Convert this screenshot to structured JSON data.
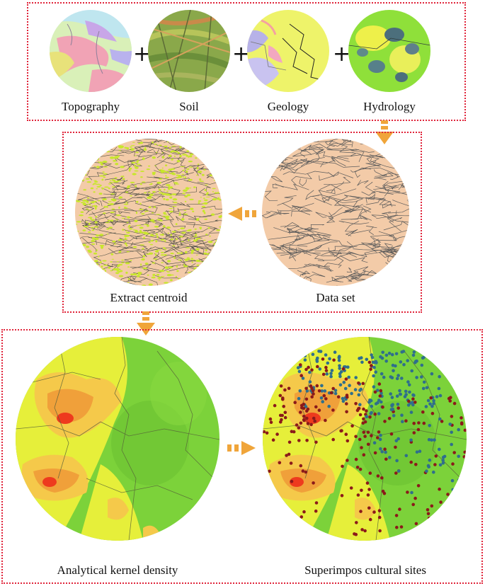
{
  "layers": {
    "topography": "Topography",
    "soil": "Soil",
    "geology": "Geology",
    "hydrology": "Hydrology"
  },
  "combine_symbol": "+",
  "steps": {
    "data_set": "Data set",
    "extract_centroid": "Extract centroid",
    "kernel_density": "Analytical kernel density",
    "cultural_sites": "Superimpos cultural sites"
  },
  "colors": {
    "panel_border": "#e0243a",
    "arrow": "#f0a53a",
    "polygon_fill": "#f3cba8",
    "centroid": "#c8e62c",
    "density_low": "#7cd23a",
    "density_high": "#ee3a1e",
    "site_red": "#8b1a1a",
    "site_blue": "#2f6f8c"
  }
}
